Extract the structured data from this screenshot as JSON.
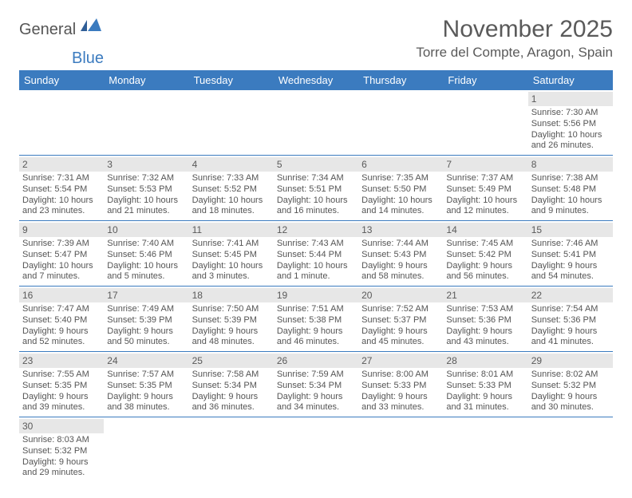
{
  "brand": {
    "part1": "General",
    "part2": "Blue"
  },
  "title": "November 2025",
  "location": "Torre del Compte, Aragon, Spain",
  "colors": {
    "header_bg": "#3b7bbf",
    "header_text": "#ffffff",
    "daybar_bg": "#e7e7e7",
    "text": "#5a5a5a",
    "rule": "#3b7bbf"
  },
  "weekdays": [
    "Sunday",
    "Monday",
    "Tuesday",
    "Wednesday",
    "Thursday",
    "Friday",
    "Saturday"
  ],
  "weeks": [
    [
      null,
      null,
      null,
      null,
      null,
      null,
      {
        "n": "1",
        "sr": "Sunrise: 7:30 AM",
        "ss": "Sunset: 5:56 PM",
        "dl": "Daylight: 10 hours and 26 minutes."
      }
    ],
    [
      {
        "n": "2",
        "sr": "Sunrise: 7:31 AM",
        "ss": "Sunset: 5:54 PM",
        "dl": "Daylight: 10 hours and 23 minutes."
      },
      {
        "n": "3",
        "sr": "Sunrise: 7:32 AM",
        "ss": "Sunset: 5:53 PM",
        "dl": "Daylight: 10 hours and 21 minutes."
      },
      {
        "n": "4",
        "sr": "Sunrise: 7:33 AM",
        "ss": "Sunset: 5:52 PM",
        "dl": "Daylight: 10 hours and 18 minutes."
      },
      {
        "n": "5",
        "sr": "Sunrise: 7:34 AM",
        "ss": "Sunset: 5:51 PM",
        "dl": "Daylight: 10 hours and 16 minutes."
      },
      {
        "n": "6",
        "sr": "Sunrise: 7:35 AM",
        "ss": "Sunset: 5:50 PM",
        "dl": "Daylight: 10 hours and 14 minutes."
      },
      {
        "n": "7",
        "sr": "Sunrise: 7:37 AM",
        "ss": "Sunset: 5:49 PM",
        "dl": "Daylight: 10 hours and 12 minutes."
      },
      {
        "n": "8",
        "sr": "Sunrise: 7:38 AM",
        "ss": "Sunset: 5:48 PM",
        "dl": "Daylight: 10 hours and 9 minutes."
      }
    ],
    [
      {
        "n": "9",
        "sr": "Sunrise: 7:39 AM",
        "ss": "Sunset: 5:47 PM",
        "dl": "Daylight: 10 hours and 7 minutes."
      },
      {
        "n": "10",
        "sr": "Sunrise: 7:40 AM",
        "ss": "Sunset: 5:46 PM",
        "dl": "Daylight: 10 hours and 5 minutes."
      },
      {
        "n": "11",
        "sr": "Sunrise: 7:41 AM",
        "ss": "Sunset: 5:45 PM",
        "dl": "Daylight: 10 hours and 3 minutes."
      },
      {
        "n": "12",
        "sr": "Sunrise: 7:43 AM",
        "ss": "Sunset: 5:44 PM",
        "dl": "Daylight: 10 hours and 1 minute."
      },
      {
        "n": "13",
        "sr": "Sunrise: 7:44 AM",
        "ss": "Sunset: 5:43 PM",
        "dl": "Daylight: 9 hours and 58 minutes."
      },
      {
        "n": "14",
        "sr": "Sunrise: 7:45 AM",
        "ss": "Sunset: 5:42 PM",
        "dl": "Daylight: 9 hours and 56 minutes."
      },
      {
        "n": "15",
        "sr": "Sunrise: 7:46 AM",
        "ss": "Sunset: 5:41 PM",
        "dl": "Daylight: 9 hours and 54 minutes."
      }
    ],
    [
      {
        "n": "16",
        "sr": "Sunrise: 7:47 AM",
        "ss": "Sunset: 5:40 PM",
        "dl": "Daylight: 9 hours and 52 minutes."
      },
      {
        "n": "17",
        "sr": "Sunrise: 7:49 AM",
        "ss": "Sunset: 5:39 PM",
        "dl": "Daylight: 9 hours and 50 minutes."
      },
      {
        "n": "18",
        "sr": "Sunrise: 7:50 AM",
        "ss": "Sunset: 5:39 PM",
        "dl": "Daylight: 9 hours and 48 minutes."
      },
      {
        "n": "19",
        "sr": "Sunrise: 7:51 AM",
        "ss": "Sunset: 5:38 PM",
        "dl": "Daylight: 9 hours and 46 minutes."
      },
      {
        "n": "20",
        "sr": "Sunrise: 7:52 AM",
        "ss": "Sunset: 5:37 PM",
        "dl": "Daylight: 9 hours and 45 minutes."
      },
      {
        "n": "21",
        "sr": "Sunrise: 7:53 AM",
        "ss": "Sunset: 5:36 PM",
        "dl": "Daylight: 9 hours and 43 minutes."
      },
      {
        "n": "22",
        "sr": "Sunrise: 7:54 AM",
        "ss": "Sunset: 5:36 PM",
        "dl": "Daylight: 9 hours and 41 minutes."
      }
    ],
    [
      {
        "n": "23",
        "sr": "Sunrise: 7:55 AM",
        "ss": "Sunset: 5:35 PM",
        "dl": "Daylight: 9 hours and 39 minutes."
      },
      {
        "n": "24",
        "sr": "Sunrise: 7:57 AM",
        "ss": "Sunset: 5:35 PM",
        "dl": "Daylight: 9 hours and 38 minutes."
      },
      {
        "n": "25",
        "sr": "Sunrise: 7:58 AM",
        "ss": "Sunset: 5:34 PM",
        "dl": "Daylight: 9 hours and 36 minutes."
      },
      {
        "n": "26",
        "sr": "Sunrise: 7:59 AM",
        "ss": "Sunset: 5:34 PM",
        "dl": "Daylight: 9 hours and 34 minutes."
      },
      {
        "n": "27",
        "sr": "Sunrise: 8:00 AM",
        "ss": "Sunset: 5:33 PM",
        "dl": "Daylight: 9 hours and 33 minutes."
      },
      {
        "n": "28",
        "sr": "Sunrise: 8:01 AM",
        "ss": "Sunset: 5:33 PM",
        "dl": "Daylight: 9 hours and 31 minutes."
      },
      {
        "n": "29",
        "sr": "Sunrise: 8:02 AM",
        "ss": "Sunset: 5:32 PM",
        "dl": "Daylight: 9 hours and 30 minutes."
      }
    ],
    [
      {
        "n": "30",
        "sr": "Sunrise: 8:03 AM",
        "ss": "Sunset: 5:32 PM",
        "dl": "Daylight: 9 hours and 29 minutes."
      },
      null,
      null,
      null,
      null,
      null,
      null
    ]
  ]
}
